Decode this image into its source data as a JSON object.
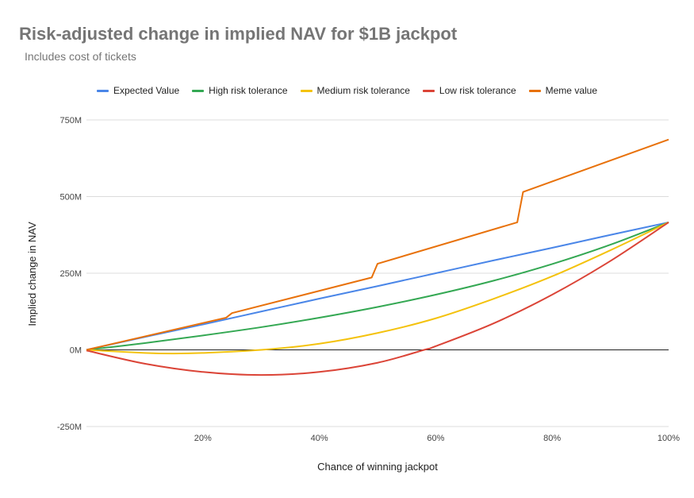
{
  "chart_data": {
    "type": "line",
    "title": "Risk-adjusted change in implied NAV for $1B jackpot",
    "subtitle": "Includes cost of tickets",
    "xlabel": "Chance of winning jackpot",
    "ylabel": "Implied change in NAV",
    "xlim": [
      0,
      100
    ],
    "ylim": [
      -250,
      750
    ],
    "x_ticks": [
      {
        "value": 20,
        "label": "20%"
      },
      {
        "value": 40,
        "label": "40%"
      },
      {
        "value": 60,
        "label": "60%"
      },
      {
        "value": 80,
        "label": "80%"
      },
      {
        "value": 100,
        "label": "100%"
      }
    ],
    "y_ticks": [
      {
        "value": 750,
        "label": "750M"
      },
      {
        "value": 500,
        "label": "500M"
      },
      {
        "value": 250,
        "label": "250M"
      },
      {
        "value": 0,
        "label": "0M"
      },
      {
        "value": -250,
        "label": "-250M"
      }
    ],
    "grid": true,
    "legend_position": "top-left",
    "series": [
      {
        "name": "Expected Value",
        "color": "#4a86e8",
        "points": [
          [
            0,
            0
          ],
          [
            10,
            42
          ],
          [
            20,
            83
          ],
          [
            30,
            125
          ],
          [
            40,
            167
          ],
          [
            50,
            208
          ],
          [
            60,
            250
          ],
          [
            70,
            292
          ],
          [
            80,
            333
          ],
          [
            90,
            375
          ],
          [
            100,
            416
          ]
        ]
      },
      {
        "name": "High risk tolerance",
        "color": "#34a853",
        "points": [
          [
            0,
            0
          ],
          [
            10,
            22
          ],
          [
            20,
            47
          ],
          [
            30,
            74
          ],
          [
            40,
            105
          ],
          [
            50,
            140
          ],
          [
            60,
            180
          ],
          [
            70,
            226
          ],
          [
            80,
            280
          ],
          [
            90,
            343
          ],
          [
            100,
            416
          ]
        ]
      },
      {
        "name": "Medium risk tolerance",
        "color": "#f4c20d",
        "points": [
          [
            0,
            0
          ],
          [
            10,
            -10
          ],
          [
            15,
            -12
          ],
          [
            20,
            -10
          ],
          [
            30,
            0
          ],
          [
            40,
            20
          ],
          [
            50,
            55
          ],
          [
            60,
            103
          ],
          [
            70,
            167
          ],
          [
            80,
            240
          ],
          [
            90,
            325
          ],
          [
            100,
            416
          ]
        ]
      },
      {
        "name": "Low risk tolerance",
        "color": "#db4437",
        "points": [
          [
            0,
            -2
          ],
          [
            10,
            -45
          ],
          [
            20,
            -72
          ],
          [
            30,
            -82
          ],
          [
            40,
            -72
          ],
          [
            50,
            -42
          ],
          [
            58,
            0
          ],
          [
            60,
            12
          ],
          [
            70,
            87
          ],
          [
            80,
            180
          ],
          [
            90,
            290
          ],
          [
            100,
            416
          ]
        ]
      },
      {
        "name": "Meme value",
        "color": "#e8710a",
        "points": [
          [
            0,
            0
          ],
          [
            24,
            105
          ],
          [
            25,
            120
          ],
          [
            49,
            236
          ],
          [
            50,
            281
          ],
          [
            74,
            416
          ],
          [
            75,
            515
          ],
          [
            100,
            686
          ]
        ]
      }
    ]
  }
}
